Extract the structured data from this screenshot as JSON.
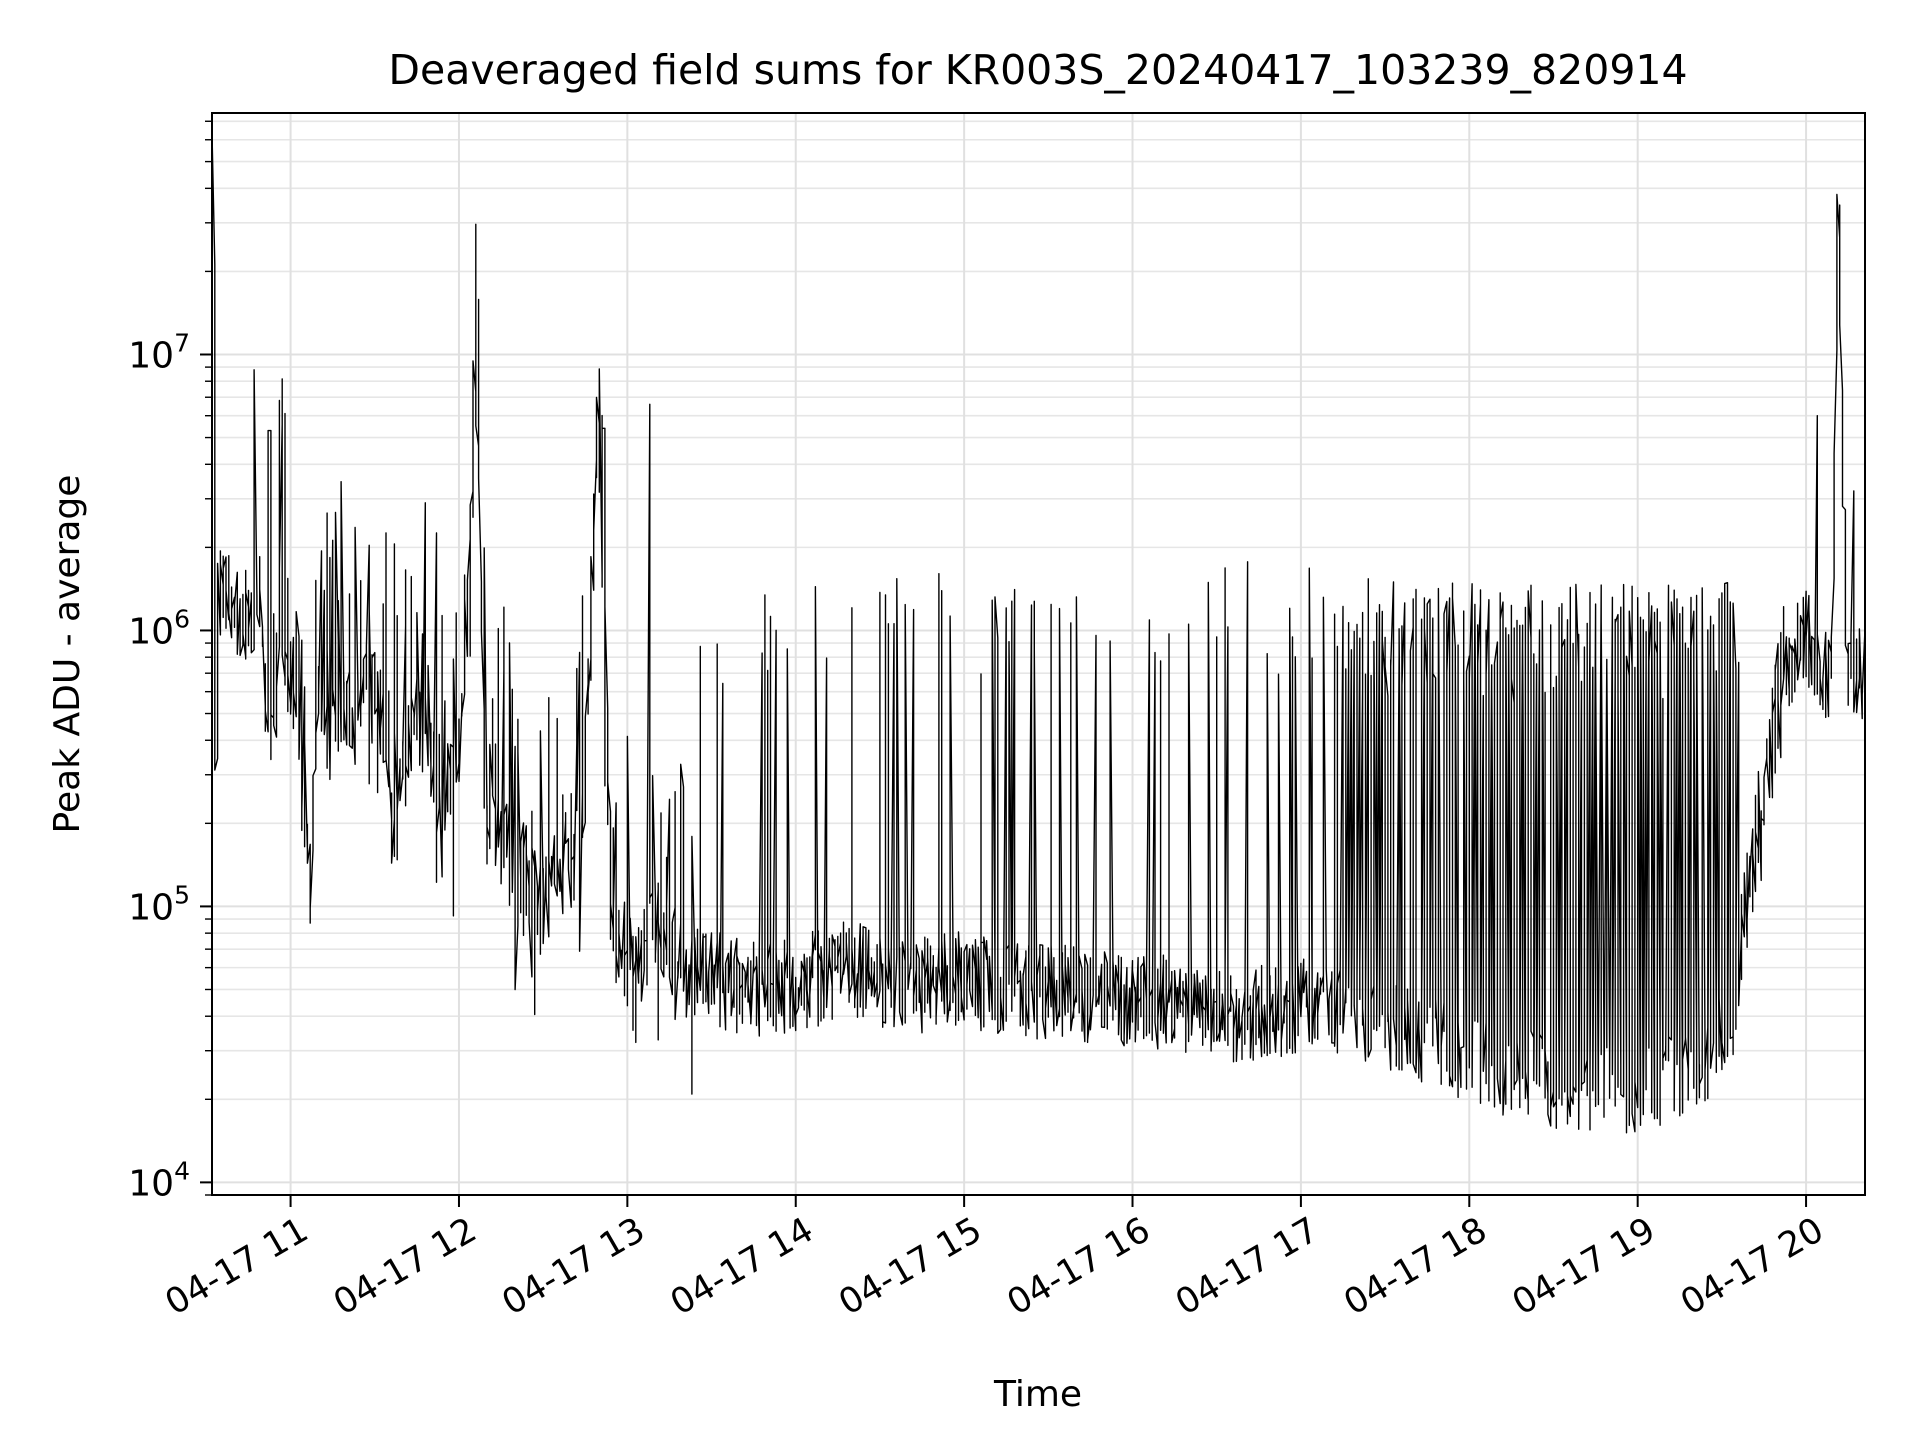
{
  "chart_data": {
    "type": "line",
    "title": "Deaveraged field sums for KR003S_20240417_103239_820914",
    "xlabel": "Time",
    "ylabel": "Peak ADU - average",
    "yscale": "log",
    "x_range": [
      "2024-04-17 10:32",
      "2024-04-17 20:21"
    ],
    "ylim": [
      9000,
      75000000
    ],
    "xticks": [
      {
        "value": "2024-04-17 11:00",
        "label": "04-17 11"
      },
      {
        "value": "2024-04-17 12:00",
        "label": "04-17 12"
      },
      {
        "value": "2024-04-17 13:00",
        "label": "04-17 13"
      },
      {
        "value": "2024-04-17 14:00",
        "label": "04-17 14"
      },
      {
        "value": "2024-04-17 15:00",
        "label": "04-17 15"
      },
      {
        "value": "2024-04-17 16:00",
        "label": "04-17 16"
      },
      {
        "value": "2024-04-17 17:00",
        "label": "04-17 17"
      },
      {
        "value": "2024-04-17 18:00",
        "label": "04-17 18"
      },
      {
        "value": "2024-04-17 19:00",
        "label": "04-17 19"
      },
      {
        "value": "2024-04-17 20:00",
        "label": "04-17 20"
      }
    ],
    "yticks": [
      {
        "value": 10000,
        "base": "10",
        "exp": "4"
      },
      {
        "value": 100000,
        "base": "10",
        "exp": "5"
      },
      {
        "value": 1000000,
        "base": "10",
        "exp": "6"
      },
      {
        "value": 10000000,
        "base": "10",
        "exp": "7"
      }
    ],
    "grid": true,
    "line_color": "#000000",
    "series": [
      {
        "x": [
          "2024-04-17 10:32",
          "2024-04-17 10:33",
          "2024-04-17 10:34",
          "2024-04-17 10:35",
          "2024-04-17 10:38",
          "2024-04-17 10:42",
          "2024-04-17 10:47",
          "2024-04-17 10:50",
          "2024-04-17 10:52",
          "2024-04-17 10:54",
          "2024-04-17 10:57",
          "2024-04-17 11:00",
          "2024-04-17 11:03",
          "2024-04-17 11:05",
          "2024-04-17 11:08",
          "2024-04-17 11:10",
          "2024-04-17 11:13",
          "2024-04-17 11:20",
          "2024-04-17 11:28",
          "2024-04-17 11:33",
          "2024-04-17 11:38",
          "2024-04-17 11:45",
          "2024-04-17 11:52",
          "2024-04-17 12:00",
          "2024-04-17 12:07",
          "2024-04-17 12:10",
          "2024-04-17 12:15",
          "2024-04-17 12:30",
          "2024-04-17 12:45",
          "2024-04-17 12:50",
          "2024-04-17 12:55",
          "2024-04-17 13:05",
          "2024-04-17 13:10",
          "2024-04-17 13:20",
          "2024-04-17 13:30",
          "2024-04-17 13:45",
          "2024-04-17 14:00",
          "2024-04-17 14:20",
          "2024-04-17 14:40",
          "2024-04-17 14:55",
          "2024-04-17 15:20",
          "2024-04-17 15:45",
          "2024-04-17 16:10",
          "2024-04-17 16:30",
          "2024-04-17 16:50",
          "2024-04-17 17:10",
          "2024-04-17 17:25",
          "2024-04-17 17:40",
          "2024-04-17 17:55",
          "2024-04-17 18:05",
          "2024-04-17 18:10",
          "2024-04-17 18:20",
          "2024-04-17 18:40",
          "2024-04-17 19:00",
          "2024-04-17 19:20",
          "2024-04-17 19:35",
          "2024-04-17 19:45",
          "2024-04-17 19:50",
          "2024-04-17 19:55",
          "2024-04-17 20:00",
          "2024-04-17 20:05",
          "2024-04-17 20:10",
          "2024-04-17 20:12",
          "2024-04-17 20:15",
          "2024-04-17 20:21"
        ],
        "y": [
          1100000,
          50000000,
          350000,
          1300000,
          1500000,
          1100000,
          1200000,
          1300000,
          500000,
          400000,
          1300000,
          600000,
          700000,
          250000,
          100000,
          600000,
          400000,
          500000,
          600000,
          550000,
          200000,
          500000,
          300000,
          250000,
          8000000,
          200000,
          200000,
          100000,
          200000,
          5500000,
          70000,
          60000,
          90000,
          60000,
          55000,
          50000,
          52000,
          60000,
          50000,
          55000,
          50000,
          48000,
          45000,
          40000,
          42000,
          45000,
          40000,
          35000,
          30000,
          28000,
          25000,
          24000,
          22000,
          22000,
          25000,
          40000,
          300000,
          500000,
          800000,
          1000000,
          700000,
          700000,
          48000000,
          650000,
          700000
        ]
      }
    ],
    "spikes": [
      {
        "x": "2024-04-17 10:48",
        "y": 8800000
      },
      {
        "x": "2024-04-17 10:53",
        "y": 5300000
      },
      {
        "x": "2024-04-17 11:48",
        "y": 2900000
      },
      {
        "x": "2024-04-17 12:52",
        "y": 5400000
      },
      {
        "x": "2024-04-17 13:08",
        "y": 6600000
      },
      {
        "x": "2024-04-17 20:04",
        "y": 6000000
      },
      {
        "x": "2024-04-17 20:17",
        "y": 3200000
      }
    ]
  }
}
